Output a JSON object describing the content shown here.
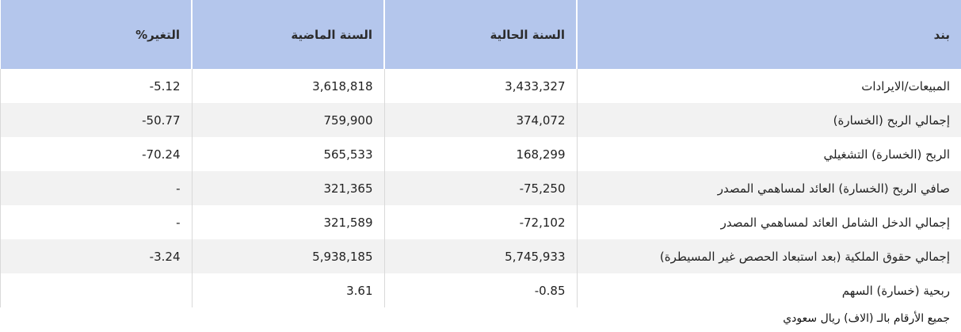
{
  "headers": {
    "item": "بند",
    "current": "السنة الحالية",
    "previous": "السنة الماضية",
    "change": "التغير%"
  },
  "rows": [
    {
      "item": "المبيعات/الايرادات",
      "current": "3,433,327",
      "previous": "3,618,818",
      "change": "5.12-"
    },
    {
      "item": "إجمالي الربح (الخسارة)",
      "current": "374,072",
      "previous": "759,900",
      "change": "50.77-"
    },
    {
      "item": "الربح (الخسارة) التشغيلي",
      "current": "168,299",
      "previous": "565,533",
      "change": "70.24-"
    },
    {
      "item": "صافي الربح (الخسارة) العائد لمساهمي المصدر",
      "current": "-75,250",
      "previous": "321,365",
      "change": "-"
    },
    {
      "item": "إجمالي الدخل الشامل العائد لمساهمي المصدر",
      "current": "-72,102",
      "previous": "321,589",
      "change": "-"
    },
    {
      "item": "إجمالي حقوق الملكية (بعد استبعاد الحصص غير المسيطرة)",
      "current": "5,745,933",
      "previous": "5,938,185",
      "change": "3.24-"
    },
    {
      "item": "ربحية (خسارة) السهم",
      "current": "-0.85",
      "previous": "3.61",
      "change": ""
    }
  ],
  "colors": {
    "header_bg": "#b4c6ec",
    "positive": "#2fb24a",
    "negative": "#e53935"
  },
  "footnote": "جميع الأرقام بالـ (الاف) ريال سعودي"
}
